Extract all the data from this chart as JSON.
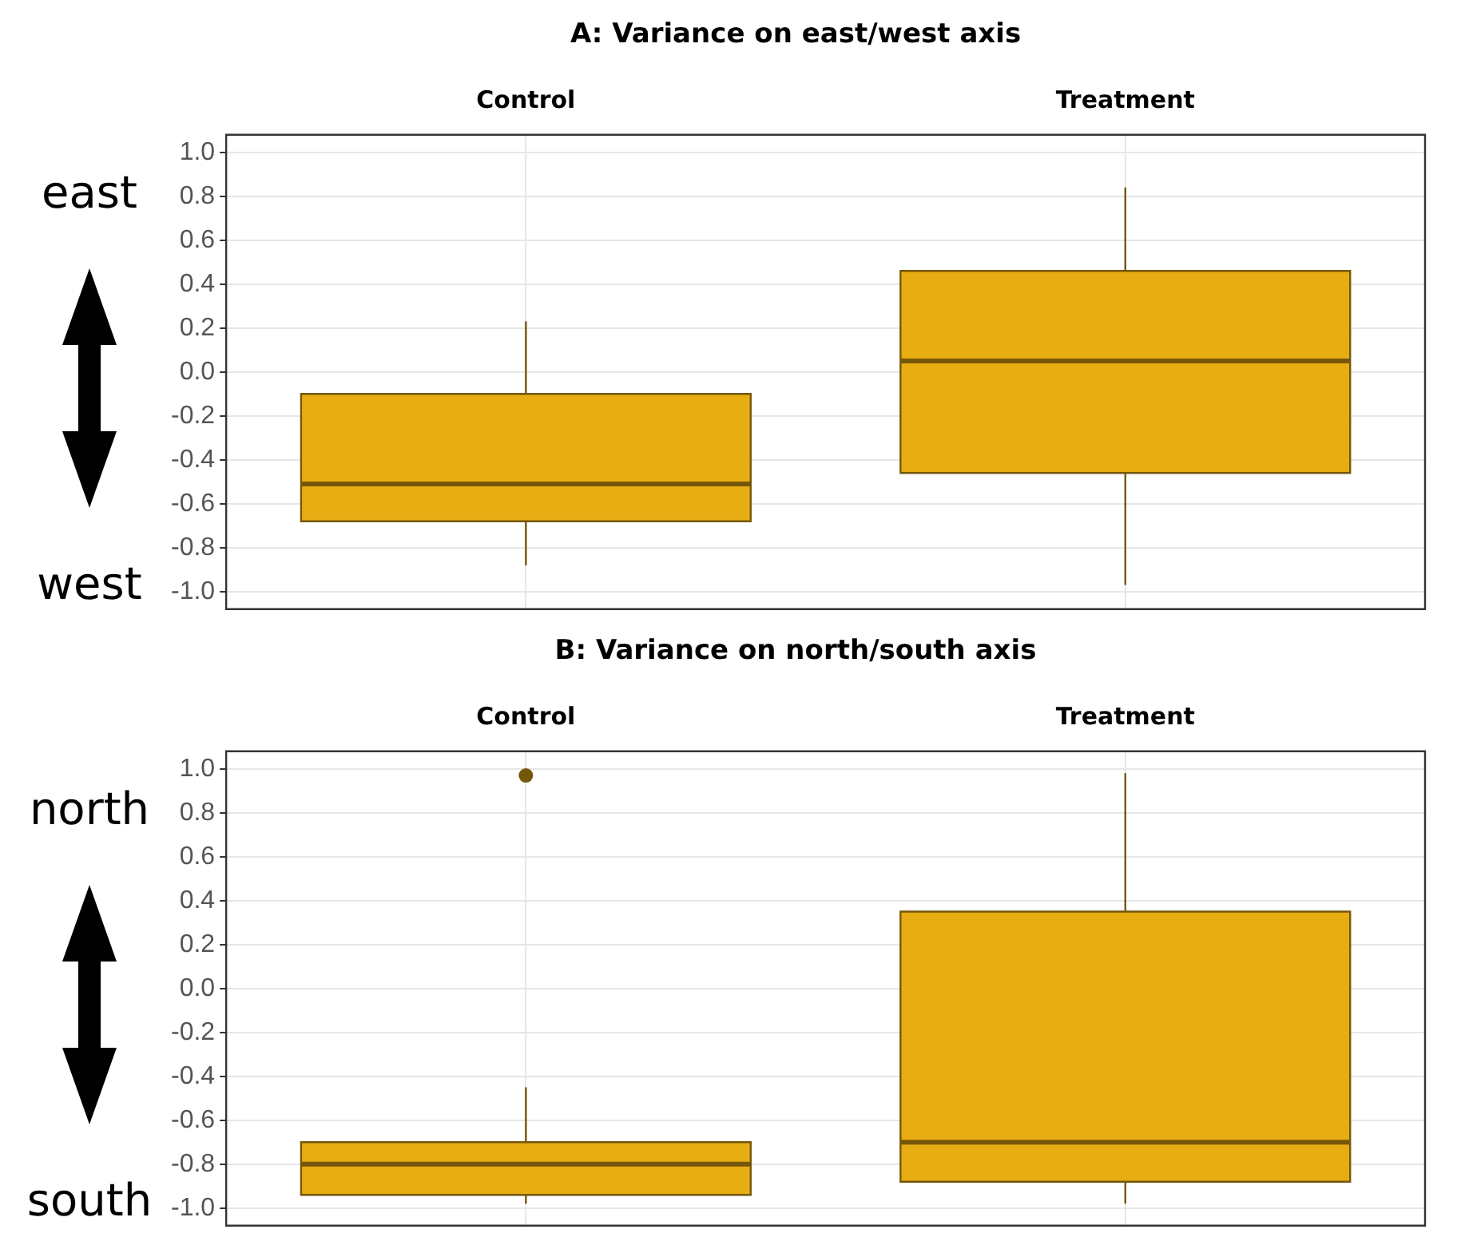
{
  "chart_data": [
    {
      "type": "box",
      "title": "A: Variance on east/west axis",
      "categories": [
        "Control",
        "Treatment"
      ],
      "color": "#e9ad14",
      "boxes": [
        {
          "low": -0.88,
          "q1": -0.68,
          "median": -0.51,
          "q3": -0.1,
          "high": 0.23
        },
        {
          "low": -0.97,
          "q1": -0.46,
          "median": 0.05,
          "q3": 0.46,
          "high": 0.84
        }
      ],
      "ylim": [
        -1.08,
        1.08
      ],
      "yticks": [
        {
          "value": -1,
          "label": "-1.0"
        },
        -0.8,
        -0.6,
        -0.4,
        -0.2,
        {
          "value": 0,
          "label": "0.0"
        },
        0.2,
        0.4,
        0.6,
        0.8,
        {
          "value": 1,
          "label": "1.0"
        }
      ],
      "grid": true,
      "annotations": [
        "east",
        "west"
      ]
    },
    {
      "type": "box",
      "title": "B: Variance on north/south axis",
      "categories": [
        "Control",
        "Treatment"
      ],
      "color": "#e9ad14",
      "boxes": [
        {
          "low": -0.98,
          "q1": -0.94,
          "median": -0.8,
          "q3": -0.7,
          "high": -0.45,
          "outliers": [
            0.97
          ]
        },
        {
          "low": -0.98,
          "q1": -0.88,
          "median": -0.7,
          "q3": 0.35,
          "high": 0.98
        }
      ],
      "ylim": [
        -1.08,
        1.08
      ],
      "yticks": [
        {
          "value": -1,
          "label": "-1.0"
        },
        -0.8,
        -0.6,
        -0.4,
        -0.2,
        {
          "value": 0,
          "label": "0.0"
        },
        0.2,
        0.4,
        0.6,
        0.8,
        {
          "value": 1,
          "label": "1.0"
        }
      ],
      "grid": true,
      "annotations": [
        "north",
        "south"
      ]
    }
  ]
}
